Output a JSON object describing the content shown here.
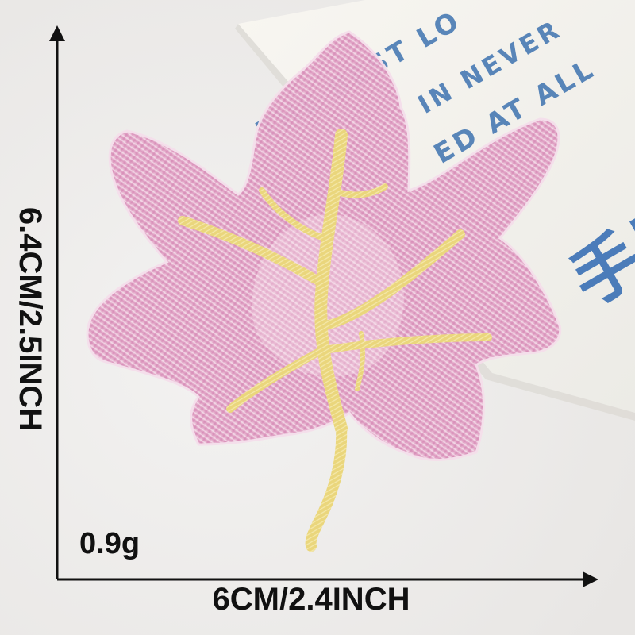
{
  "measurements": {
    "height_label": "6.4CM/2.5INCH",
    "width_label": "6CM/2.4INCH",
    "weight_label": "0.9g"
  },
  "card": {
    "line1": "THE BEST LO",
    "line2": "IN NEVER",
    "line3": "ED AT ALL",
    "cjk": "手用"
  },
  "colors": {
    "background": "#f0efee",
    "card": "#f6f4ef",
    "card_text": "#3e73b0",
    "leaf_pink": "#e2a7c9",
    "leaf_vein": "#ead67c",
    "arrow": "#111111"
  }
}
